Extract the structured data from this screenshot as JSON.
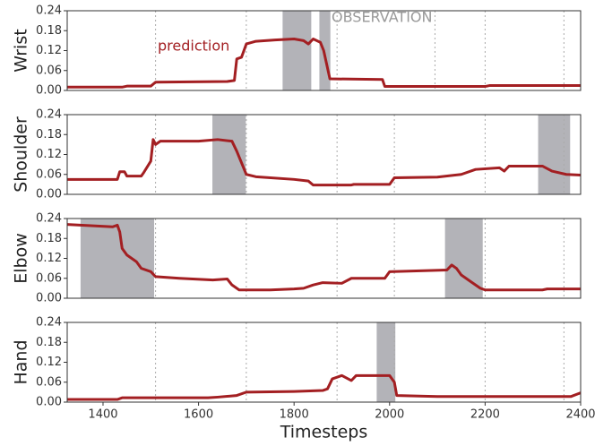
{
  "chart_data": [
    {
      "type": "line",
      "ylabel": "Wrist",
      "xlim": [
        1325,
        2400
      ],
      "ylim": [
        0,
        0.24
      ],
      "yticks": [
        {
          "value": 0,
          "label": "0.00"
        },
        0.06,
        0.12,
        0.18,
        0.24
      ],
      "vlines": [
        1510,
        1700,
        1890,
        2095,
        2200,
        2365
      ],
      "shade_color": "#b3b3b8",
      "shade_label": "OBSERVATION",
      "shades": [
        [
          1776,
          1836
        ],
        [
          1853,
          1876
        ]
      ],
      "x": [
        1325,
        1440,
        1450,
        1500,
        1510,
        1660,
        1675,
        1680,
        1690,
        1700,
        1720,
        1760,
        1800,
        1820,
        1830,
        1840,
        1855,
        1862,
        1875,
        1985,
        1990,
        2200,
        2210,
        2400
      ],
      "series": [
        {
          "name": "prediction",
          "color": "#a31f22",
          "values": [
            0.01,
            0.01,
            0.013,
            0.013,
            0.025,
            0.027,
            0.03,
            0.095,
            0.1,
            0.14,
            0.148,
            0.152,
            0.155,
            0.15,
            0.14,
            0.155,
            0.145,
            0.12,
            0.035,
            0.033,
            0.012,
            0.012,
            0.015,
            0.015
          ]
        }
      ]
    },
    {
      "type": "line",
      "ylabel": "Shoulder",
      "xlim": [
        1325,
        2400
      ],
      "ylim": [
        0,
        0.24
      ],
      "yticks": [
        {
          "value": 0,
          "label": "0.00"
        },
        0.06,
        0.12,
        0.18,
        0.24
      ],
      "vlines": [
        1510,
        1700,
        1890,
        2010,
        2200,
        2365
      ],
      "shade_color": "#b3b3b8",
      "shades": [
        [
          1629,
          1699
        ],
        [
          2311,
          2378
        ]
      ],
      "x": [
        1325,
        1430,
        1435,
        1445,
        1450,
        1480,
        1485,
        1500,
        1505,
        1510,
        1520,
        1600,
        1640,
        1670,
        1680,
        1700,
        1720,
        1800,
        1830,
        1840,
        1920,
        1925,
        2000,
        2010,
        2100,
        2150,
        2180,
        2230,
        2240,
        2250,
        2320,
        2340,
        2370,
        2400
      ],
      "series": [
        {
          "color": "#a31f22",
          "values": [
            0.045,
            0.045,
            0.068,
            0.068,
            0.055,
            0.055,
            0.065,
            0.1,
            0.165,
            0.15,
            0.16,
            0.16,
            0.165,
            0.16,
            0.13,
            0.06,
            0.053,
            0.045,
            0.04,
            0.028,
            0.028,
            0.03,
            0.03,
            0.05,
            0.052,
            0.06,
            0.075,
            0.08,
            0.07,
            0.085,
            0.085,
            0.07,
            0.06,
            0.058
          ]
        }
      ]
    },
    {
      "type": "line",
      "ylabel": "Elbow",
      "xlim": [
        1325,
        2400
      ],
      "ylim": [
        0,
        0.24
      ],
      "yticks": [
        {
          "value": 0,
          "label": "0.00"
        },
        0.06,
        0.12,
        0.18,
        0.24
      ],
      "vlines": [
        1510,
        1700,
        1890,
        2010,
        2200,
        2365
      ],
      "shade_color": "#b3b3b8",
      "shades": [
        [
          1353,
          1507
        ],
        [
          2116,
          2195
        ]
      ],
      "x": [
        1325,
        1420,
        1430,
        1435,
        1440,
        1450,
        1470,
        1480,
        1500,
        1510,
        1560,
        1630,
        1660,
        1670,
        1685,
        1750,
        1800,
        1820,
        1840,
        1860,
        1900,
        1920,
        1990,
        2000,
        2120,
        2130,
        2140,
        2150,
        2170,
        2190,
        2200,
        2320,
        2330,
        2400
      ],
      "series": [
        {
          "color": "#a31f22",
          "values": [
            0.222,
            0.215,
            0.22,
            0.2,
            0.15,
            0.13,
            0.11,
            0.09,
            0.08,
            0.065,
            0.06,
            0.055,
            0.058,
            0.04,
            0.025,
            0.025,
            0.028,
            0.03,
            0.04,
            0.047,
            0.045,
            0.06,
            0.06,
            0.08,
            0.085,
            0.1,
            0.09,
            0.07,
            0.05,
            0.03,
            0.025,
            0.025,
            0.028,
            0.028
          ]
        }
      ]
    },
    {
      "type": "line",
      "ylabel": "Hand",
      "xlabel": "Timesteps",
      "xlim": [
        1325,
        2400
      ],
      "ylim": [
        0,
        0.24
      ],
      "yticks": [
        {
          "value": 0,
          "label": "0.00"
        },
        0.06,
        0.12,
        0.18,
        0.24
      ],
      "xticks": [
        1400,
        1600,
        1800,
        2000,
        2200,
        2400
      ],
      "vlines": [
        1510,
        1700,
        1890,
        2010,
        2200,
        2365
      ],
      "shade_color": "#b3b3b8",
      "shades": [
        [
          1973,
          2012
        ]
      ],
      "x": [
        1325,
        1430,
        1440,
        1620,
        1640,
        1680,
        1700,
        1800,
        1860,
        1870,
        1880,
        1900,
        1920,
        1930,
        2000,
        2010,
        2015,
        2100,
        2380,
        2400
      ],
      "series": [
        {
          "color": "#a31f22",
          "values": [
            0.008,
            0.008,
            0.013,
            0.013,
            0.015,
            0.02,
            0.03,
            0.032,
            0.035,
            0.04,
            0.07,
            0.08,
            0.065,
            0.08,
            0.08,
            0.06,
            0.02,
            0.017,
            0.017,
            0.028
          ]
        }
      ]
    }
  ]
}
